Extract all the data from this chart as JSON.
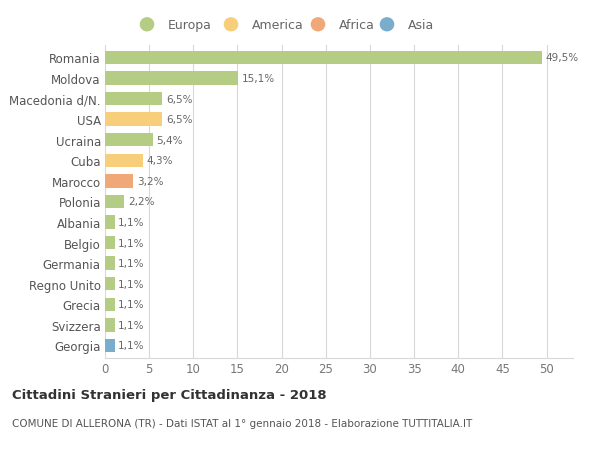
{
  "categories": [
    "Romania",
    "Moldova",
    "Macedonia d/N.",
    "USA",
    "Ucraina",
    "Cuba",
    "Marocco",
    "Polonia",
    "Albania",
    "Belgio",
    "Germania",
    "Regno Unito",
    "Grecia",
    "Svizzera",
    "Georgia"
  ],
  "values": [
    49.5,
    15.1,
    6.5,
    6.5,
    5.4,
    4.3,
    3.2,
    2.2,
    1.1,
    1.1,
    1.1,
    1.1,
    1.1,
    1.1,
    1.1
  ],
  "labels": [
    "49,5%",
    "15,1%",
    "6,5%",
    "6,5%",
    "5,4%",
    "4,3%",
    "3,2%",
    "2,2%",
    "1,1%",
    "1,1%",
    "1,1%",
    "1,1%",
    "1,1%",
    "1,1%",
    "1,1%"
  ],
  "colors": [
    "#b5cc85",
    "#b5cc85",
    "#b5cc85",
    "#f7ce7a",
    "#b5cc85",
    "#f7ce7a",
    "#f0a878",
    "#b5cc85",
    "#b5cc85",
    "#b5cc85",
    "#b5cc85",
    "#b5cc85",
    "#b5cc85",
    "#b5cc85",
    "#7aadcc"
  ],
  "legend_labels": [
    "Europa",
    "America",
    "Africa",
    "Asia"
  ],
  "legend_colors": [
    "#b5cc85",
    "#f7ce7a",
    "#f0a878",
    "#7aadcc"
  ],
  "title": "Cittadini Stranieri per Cittadinanza - 2018",
  "subtitle": "COMUNE DI ALLERONA (TR) - Dati ISTAT al 1° gennaio 2018 - Elaborazione TUTTITALIA.IT",
  "xlim": [
    0,
    53
  ],
  "xticks": [
    0,
    5,
    10,
    15,
    20,
    25,
    30,
    35,
    40,
    45,
    50
  ],
  "background_color": "#ffffff",
  "grid_color": "#d8d8d8"
}
